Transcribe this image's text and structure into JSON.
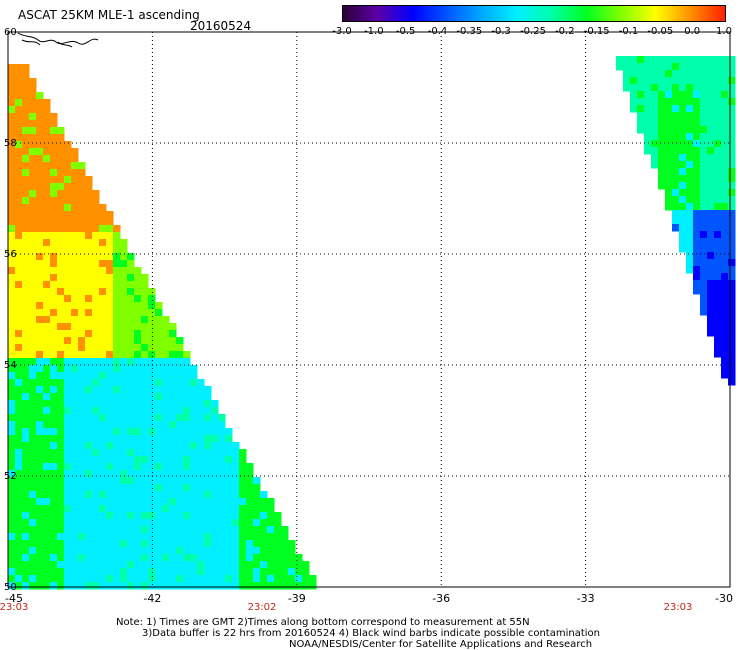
{
  "header": {
    "title": "ASCAT 25KM MLE-1 ascending",
    "date": "20160524"
  },
  "colorbar": {
    "colors": [
      "#2a0035",
      "#5d00a8",
      "#0000ff",
      "#0055ff",
      "#00aaff",
      "#00f0ff",
      "#00ffaa",
      "#00ff20",
      "#80ff00",
      "#ffff00",
      "#ff9000",
      "#ff2000"
    ],
    "tick_labels": [
      "-3.0",
      "-1.0",
      "-0.5",
      "-0.4",
      "-0.35",
      "-0.3",
      "-0.25",
      "-0.2",
      "-0.15",
      "-0.1",
      "-0.05",
      "0.0",
      "1.0"
    ]
  },
  "map": {
    "lat_labels": [
      "60",
      "58",
      "56",
      "54",
      "52",
      "50"
    ],
    "lon_labels": [
      "-45",
      "-42",
      "-39",
      "-36",
      "-33",
      "-30"
    ],
    "time_labels": [
      "23:03",
      "23:02",
      "23:03"
    ],
    "swaths": [
      {
        "name": "west-swath",
        "colors": [
          "#ffff00",
          "#ff9000",
          "#80ff00",
          "#00ff20",
          "#00f0ff",
          "#00ffaa",
          "#0055ff"
        ]
      },
      {
        "name": "east-swath",
        "colors": [
          "#00ffaa",
          "#00ff20",
          "#00f0ff",
          "#0055ff",
          "#0000ff"
        ]
      }
    ]
  },
  "notes": {
    "line1": "Note: 1) Times are GMT 2)Times along bottom correspond to measurement at 55N",
    "line2": "3)Data buffer is 22 hrs from 20160524 4) Black wind barbs indicate possible contamination",
    "line3": "NOAA/NESDIS/Center for Satellite Applications and Research"
  }
}
